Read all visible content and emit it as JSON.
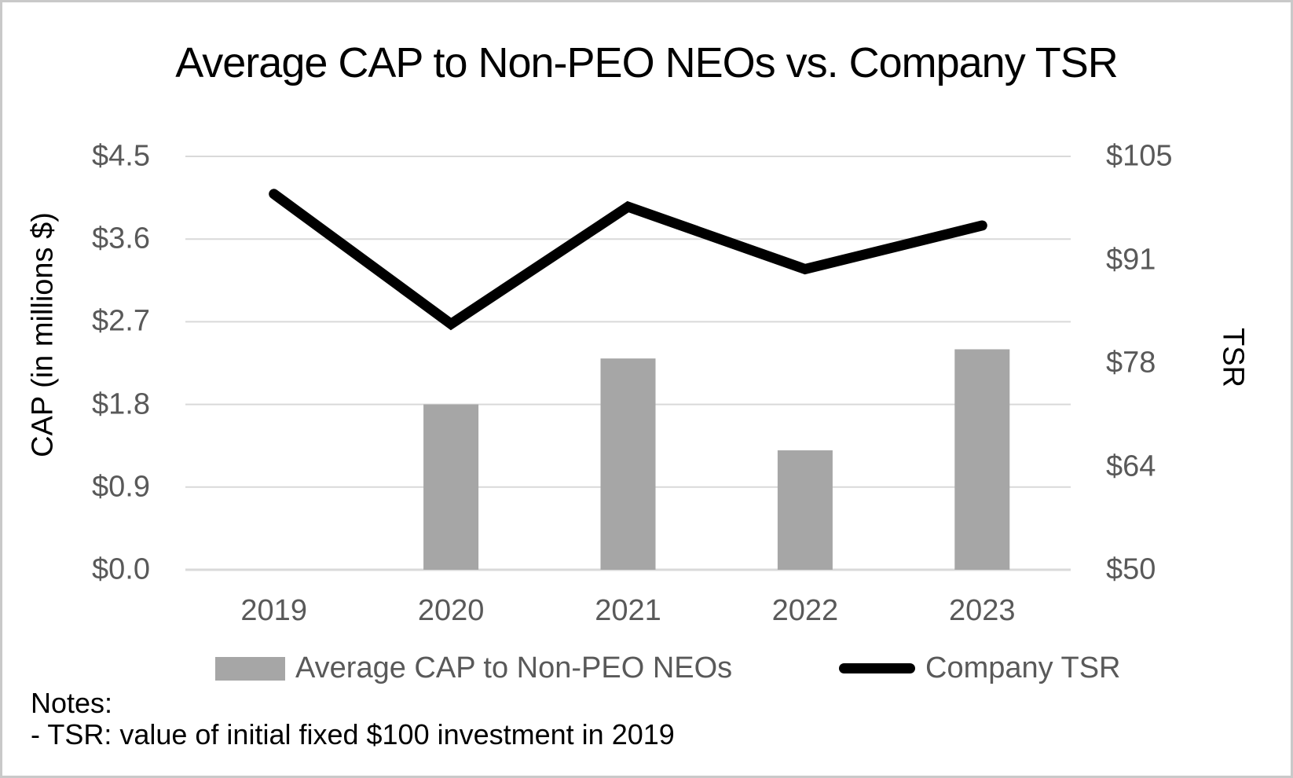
{
  "chart_data": {
    "type": "combo",
    "title": "Average CAP to Non-PEO NEOs vs. Company TSR",
    "categories": [
      "2019",
      "2020",
      "2021",
      "2022",
      "2023"
    ],
    "series": [
      {
        "name": "Average CAP to Non-PEO NEOs",
        "type": "bar",
        "axis": "left",
        "color": "#a6a6a6",
        "values": [
          0,
          1.8,
          2.3,
          1.3,
          2.4
        ]
      },
      {
        "name": "Company TSR",
        "type": "line",
        "axis": "right",
        "color": "#000000",
        "values": [
          100,
          82.7,
          98.3,
          90,
          95.8
        ]
      }
    ],
    "left_axis": {
      "title": "CAP (in millions $)",
      "min": 0,
      "max": 4.5,
      "tick_labels": [
        "$0.0",
        "$0.9",
        "$1.8",
        "$2.7",
        "$3.6",
        "$4.5"
      ]
    },
    "right_axis": {
      "title": "TSR",
      "min": 50,
      "max": 105,
      "tick_labels": [
        "$50",
        "$64",
        "$78",
        "$91",
        "$105"
      ]
    },
    "grid": "horizontal",
    "legend_position": "bottom",
    "colors": {
      "gridline": "#d9d9d9",
      "tick_text": "#595959",
      "title_text": "#000000",
      "legend_text": "#595959"
    }
  },
  "notes": {
    "heading": "Notes:",
    "items": [
      "- TSR: value of initial fixed $100 investment in 2019"
    ]
  }
}
